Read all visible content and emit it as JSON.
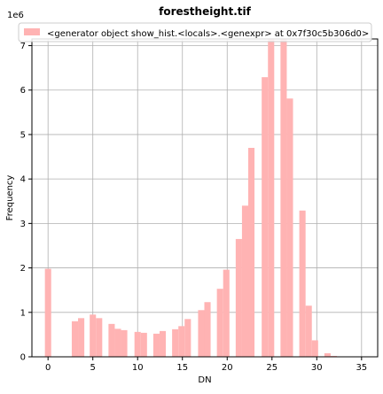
{
  "chart_data": {
    "type": "bar",
    "title": "forestheight.tif",
    "xlabel": "DN",
    "ylabel": "Frequency",
    "y_offset_text": "1e6",
    "xlim": [
      -1.8,
      36.8
    ],
    "ylim": [
      0,
      7150000
    ],
    "grid": true,
    "legend_position": "top",
    "x_ticks": [
      0,
      5,
      10,
      15,
      20,
      25,
      30,
      35
    ],
    "y_ticks": [
      0,
      1000000,
      2000000,
      3000000,
      4000000,
      5000000,
      6000000,
      7000000
    ],
    "y_tick_labels": [
      "0",
      "1",
      "2",
      "3",
      "4",
      "5",
      "6",
      "7"
    ],
    "bin_width": 0.7,
    "series": [
      {
        "name": "<generator object show_hist.<locals>.<genexpr> at 0x7f30c5b306d0>",
        "color": "#ffb3b3",
        "bins": [
          {
            "x": 0.0,
            "value": 1980000
          },
          {
            "x": 3.0,
            "value": 800000
          },
          {
            "x": 3.7,
            "value": 870000
          },
          {
            "x": 5.0,
            "value": 950000
          },
          {
            "x": 5.7,
            "value": 870000
          },
          {
            "x": 7.1,
            "value": 740000
          },
          {
            "x": 7.8,
            "value": 630000
          },
          {
            "x": 8.5,
            "value": 600000
          },
          {
            "x": 10.0,
            "value": 560000
          },
          {
            "x": 10.7,
            "value": 540000
          },
          {
            "x": 12.1,
            "value": 520000
          },
          {
            "x": 12.8,
            "value": 580000
          },
          {
            "x": 14.2,
            "value": 620000
          },
          {
            "x": 14.9,
            "value": 690000
          },
          {
            "x": 15.6,
            "value": 850000
          },
          {
            "x": 17.1,
            "value": 1050000
          },
          {
            "x": 17.8,
            "value": 1230000
          },
          {
            "x": 19.2,
            "value": 1530000
          },
          {
            "x": 19.9,
            "value": 1960000
          },
          {
            "x": 21.3,
            "value": 2650000
          },
          {
            "x": 22.0,
            "value": 3400000
          },
          {
            "x": 22.7,
            "value": 4700000
          },
          {
            "x": 24.2,
            "value": 6290000
          },
          {
            "x": 24.9,
            "value": 7150000
          },
          {
            "x": 26.3,
            "value": 7150000
          },
          {
            "x": 27.0,
            "value": 5810000
          },
          {
            "x": 28.4,
            "value": 3290000
          },
          {
            "x": 29.1,
            "value": 1150000
          },
          {
            "x": 29.8,
            "value": 370000
          },
          {
            "x": 31.2,
            "value": 80000
          },
          {
            "x": 31.9,
            "value": 20000
          }
        ]
      }
    ]
  }
}
